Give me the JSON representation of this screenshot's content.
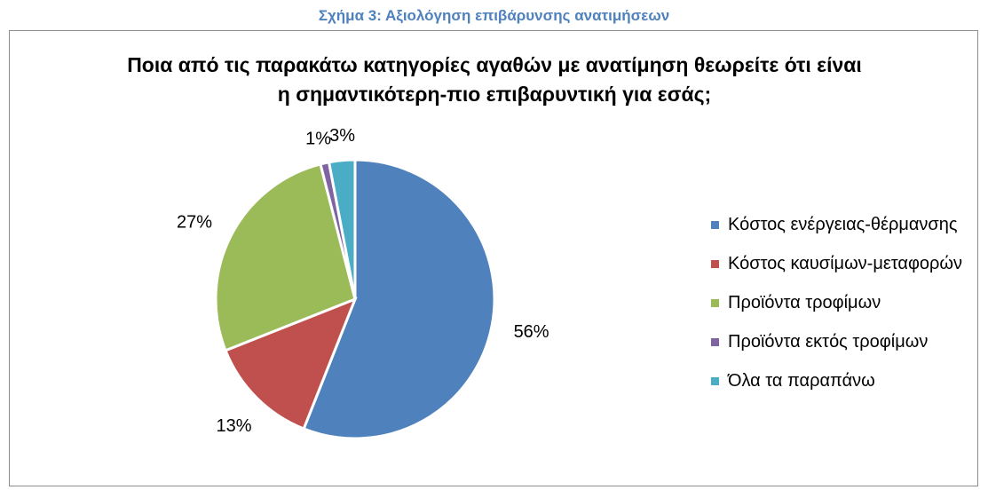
{
  "caption": {
    "text": "Σχήμα 3: Αξιολόγηση επιβάρυνσης ανατιμήσεων",
    "color": "#4f81bd"
  },
  "chart_data": {
    "type": "pie",
    "title_lines": [
      "Ποια από τις παρακάτω κατηγορίες αγαθών με ανατίμηση θεωρείτε ότι είναι",
      "η σημαντικότερη-πιο επιβαρυντική για εσάς;"
    ],
    "categories": [
      "Κόστος ενέργειας-θέρμανσης",
      "Κόστος καυσίμων-μεταφορών",
      "Προϊόντα τροφίμων",
      "Προϊόντα εκτός τροφίμων",
      "Όλα τα παραπάνω"
    ],
    "values": [
      56,
      13,
      27,
      1,
      3
    ],
    "data_labels": [
      "56%",
      "13%",
      "27%",
      "1%",
      "3%"
    ],
    "colors": [
      "#4f81bd",
      "#c0504d",
      "#9bbb59",
      "#8064a2",
      "#4bacc6"
    ],
    "legend": "right"
  }
}
